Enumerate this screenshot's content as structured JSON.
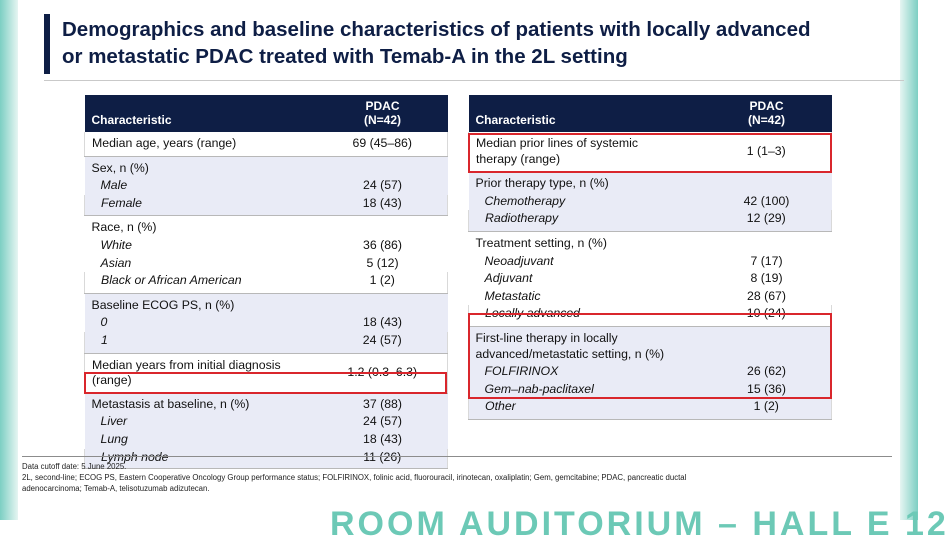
{
  "slide": {
    "title_line1": "Demographics and baseline characteristics of patients with locally advanced",
    "title_line2": "or metastatic PDAC treated with Temab-A in the 2L setting"
  },
  "left_table": {
    "header_characteristic": "Characteristic",
    "header_col_line1": "PDAC",
    "header_col_line2": "(N=42)",
    "median_age": {
      "label": "Median age, years (range)",
      "value": "69 (45–86)"
    },
    "sex": {
      "label": "Sex, n (%)",
      "rows": [
        {
          "label": "Male",
          "value": "24 (57)"
        },
        {
          "label": "Female",
          "value": "18 (43)"
        }
      ]
    },
    "race": {
      "label": "Race, n (%)",
      "rows": [
        {
          "label": "White",
          "value": "36 (86)"
        },
        {
          "label": "Asian",
          "value": "5 (12)"
        },
        {
          "label": "Black or African American",
          "value": "1 (2)"
        }
      ]
    },
    "ecog": {
      "label": "Baseline ECOG PS, n (%)",
      "rows": [
        {
          "label": "0",
          "value": "18 (43)"
        },
        {
          "label": "1",
          "value": "24 (57)"
        }
      ]
    },
    "years_dx": {
      "label_line1": "Median years from initial diagnosis",
      "label_line2": "(range)",
      "value": "1.2 (0.3–6.3)"
    },
    "metastasis": {
      "label": "Metastasis at baseline, n (%)",
      "value": "37 (88)",
      "rows": [
        {
          "label": "Liver",
          "value": "24 (57)"
        },
        {
          "label": "Lung",
          "value": "18 (43)"
        },
        {
          "label": "Lymph node",
          "value": "11 (26)"
        }
      ]
    }
  },
  "right_table": {
    "header_characteristic": "Characteristic",
    "header_col_line1": "PDAC",
    "header_col_line2": "(N=42)",
    "prior_lines": {
      "label_line1": "Median prior lines of systemic",
      "label_line2": "therapy (range)",
      "value": "1 (1–3)"
    },
    "prior_type": {
      "label": "Prior therapy type, n (%)",
      "rows": [
        {
          "label": "Chemotherapy",
          "value": "42 (100)"
        },
        {
          "label": "Radiotherapy",
          "value": "12 (29)"
        }
      ]
    },
    "setting": {
      "label": "Treatment setting, n (%)",
      "rows": [
        {
          "label": "Neoadjuvant",
          "value": "7 (17)"
        },
        {
          "label": "Adjuvant",
          "value": "8 (19)"
        },
        {
          "label": "Metastatic",
          "value": "28 (67)"
        },
        {
          "label": "Locally advanced",
          "value": "10 (24)"
        }
      ]
    },
    "first_line": {
      "label_line1": "First-line therapy in locally",
      "label_line2": "advanced/metastatic setting, n (%)",
      "rows": [
        {
          "label": "FOLFIRINOX",
          "value": "26 (62)"
        },
        {
          "label": "Gem–nab-paclitaxel",
          "value": "15 (36)"
        },
        {
          "label": "Other",
          "value": "1 (2)"
        }
      ]
    }
  },
  "footer": {
    "cutoff": "Data cutoff date: 5 June 2025.",
    "abbrev_line1": "2L, second-line; ECOG PS, Eastern Cooperative Oncology Group performance status; FOLFIRINOX, folinic acid, fluorouracil, irinotecan, oxaliplatin; Gem, gemcitabine; PDAC, pancreatic ductal",
    "abbrev_line2": "adenocarcinoma; Temab-A, telisotuzumab adizutecan."
  },
  "watermark": "ROOM AUDITORIUM – HALL E 12"
}
